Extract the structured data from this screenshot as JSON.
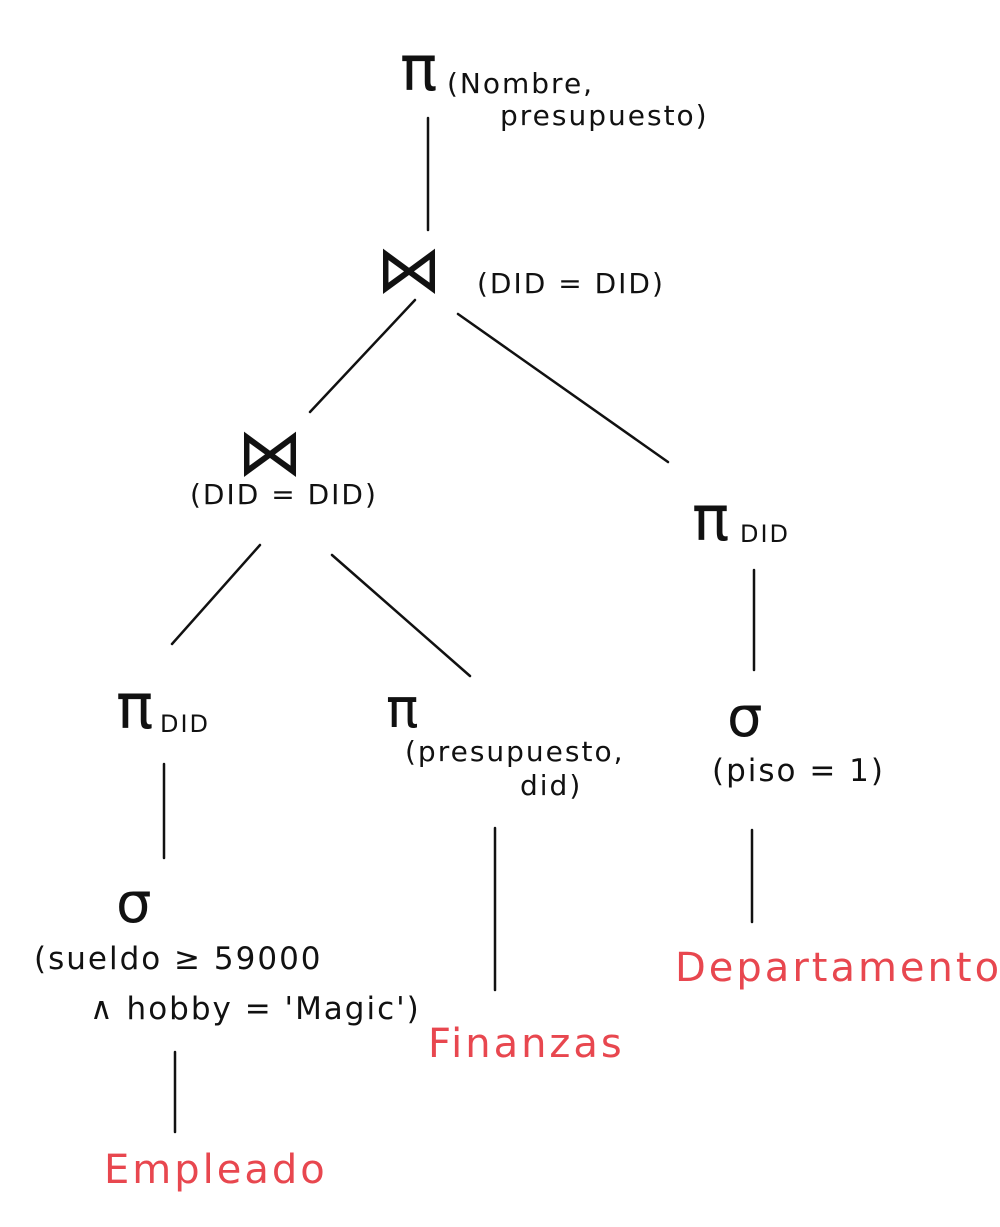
{
  "diagram": {
    "type": "relational-algebra-query-tree",
    "root_projection": {
      "symbol": "π",
      "attrs_line1": "(Nombre,",
      "attrs_line2": "presupuesto)"
    },
    "top_join": {
      "symbol": "⋈",
      "condition": "(DID = DID)"
    },
    "left_join": {
      "symbol": "⋈",
      "condition": "(DID = DID)"
    },
    "right_projection": {
      "symbol": "π",
      "attrs": "DID"
    },
    "right_selection": {
      "symbol": "σ",
      "condition": "(piso = 1)"
    },
    "left_projection": {
      "symbol": "π",
      "attrs": "DID"
    },
    "mid_projection": {
      "symbol": "π",
      "attrs_line1": "(presupuesto,",
      "attrs_line2": "did)"
    },
    "left_selection": {
      "symbol": "σ",
      "condition_line1": "(sueldo ≥ 59000",
      "condition_line2": "∧ hobby = 'Magic')"
    },
    "relations": {
      "empleado": "Empleado",
      "finanzas": "Finanzas",
      "departamento": "Departamento"
    },
    "colors": {
      "ink": "#111111",
      "relation": "#e8474f"
    }
  }
}
